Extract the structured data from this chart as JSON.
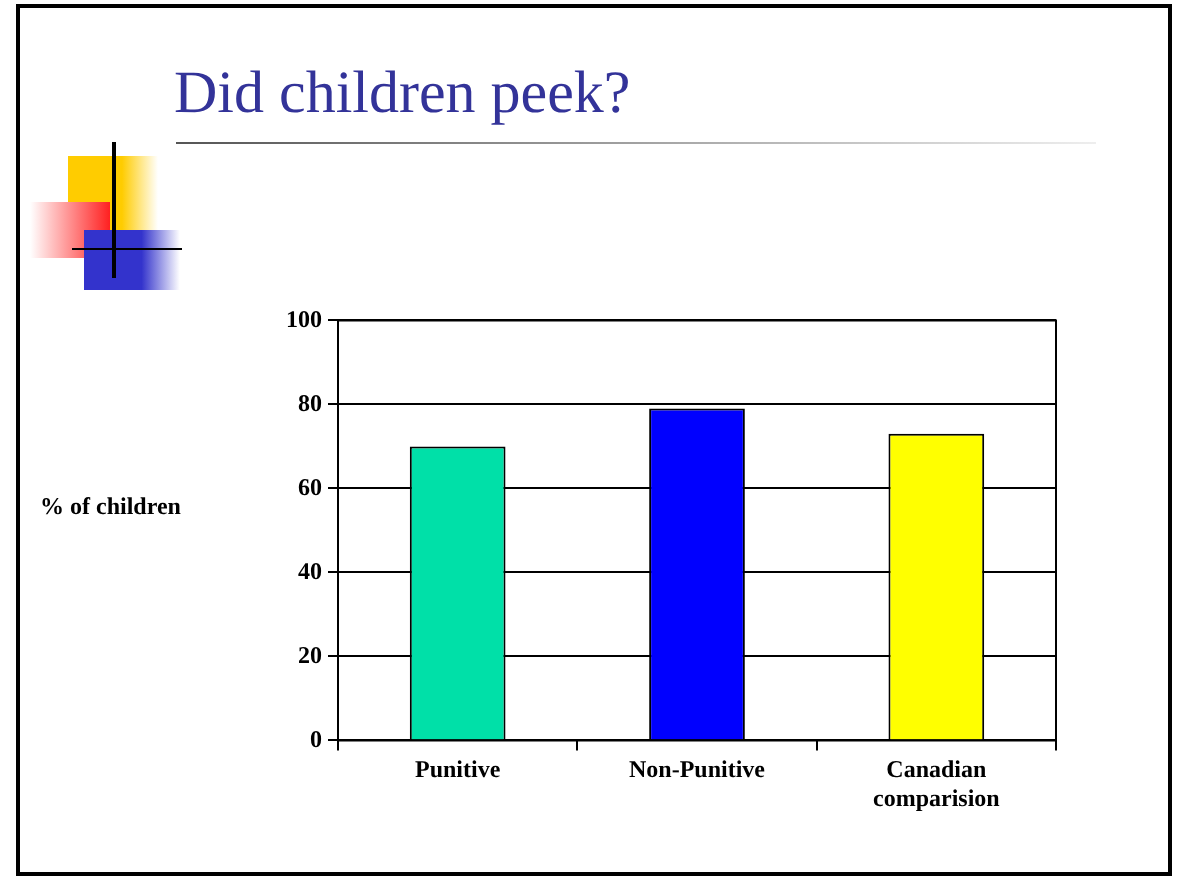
{
  "chart_data": {
    "type": "bar",
    "title": "Did children peek?",
    "ylabel": "% of children",
    "categories": [
      "Punitive",
      "Non-Punitive",
      "Canadian comparision"
    ],
    "values": [
      70,
      79,
      73
    ],
    "colors": [
      "#00e0a8",
      "#0000ff",
      "#ffff00"
    ],
    "ylim": [
      0,
      100
    ],
    "yticks": [
      0,
      20,
      40,
      60,
      80,
      100
    ],
    "grid": "y"
  }
}
